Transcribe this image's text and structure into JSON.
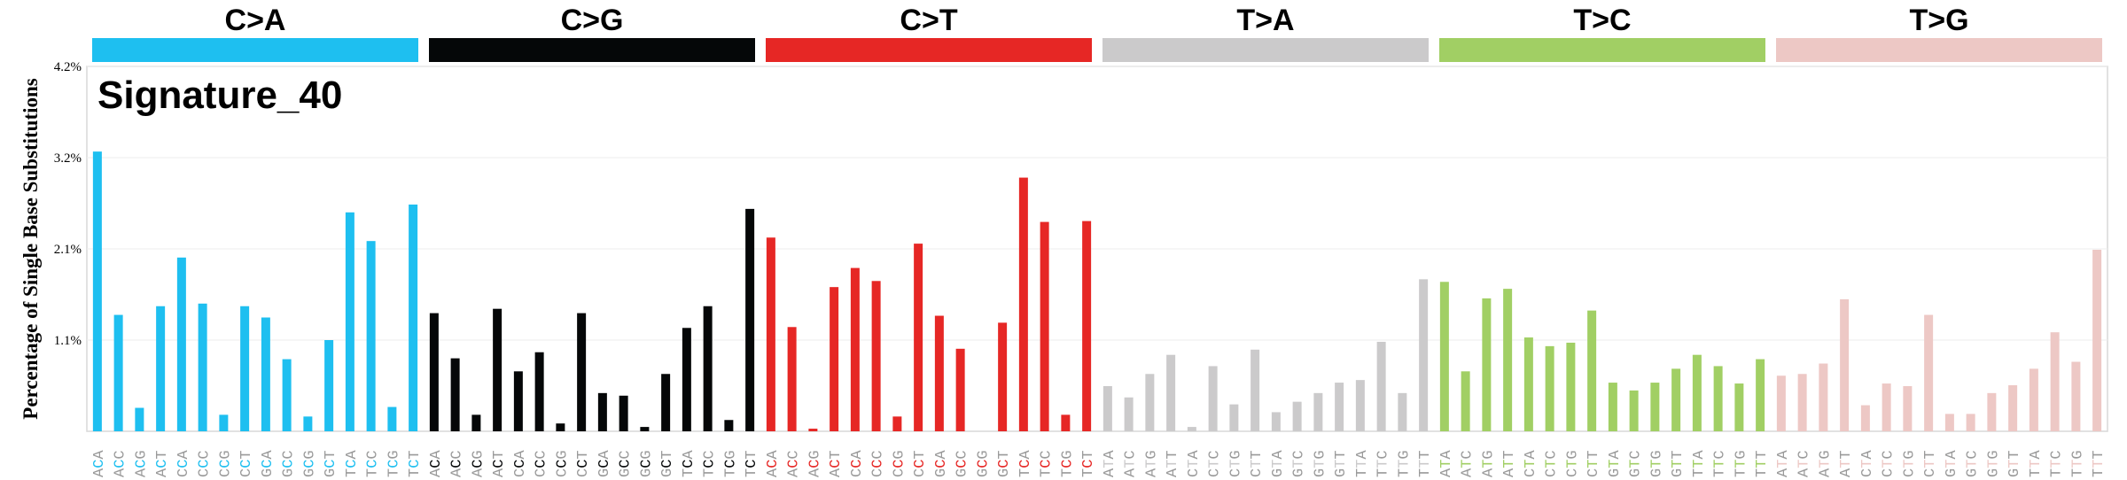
{
  "chart_data": {
    "type": "bar",
    "title": "Signature_40",
    "ylabel": "Percentage of Single Base Substitutions",
    "groups": [
      {
        "label": "C>A",
        "color": "#1ebff0"
      },
      {
        "label": "C>G",
        "color": "#050708"
      },
      {
        "label": "C>T",
        "color": "#e62725"
      },
      {
        "label": "T>A",
        "color": "#cbcacb"
      },
      {
        "label": "T>C",
        "color": "#a1cf64"
      },
      {
        "label": "T>G",
        "color": "#edc8c5"
      }
    ],
    "categories": [
      "ACA",
      "ACC",
      "ACG",
      "ACT",
      "CCA",
      "CCC",
      "CCG",
      "CCT",
      "GCA",
      "GCC",
      "GCG",
      "GCT",
      "TCA",
      "TCC",
      "TCG",
      "TCT",
      "ACA",
      "ACC",
      "ACG",
      "ACT",
      "CCA",
      "CCC",
      "CCG",
      "CCT",
      "GCA",
      "GCC",
      "GCG",
      "GCT",
      "TCA",
      "TCC",
      "TCG",
      "TCT",
      "ACA",
      "ACC",
      "ACG",
      "ACT",
      "CCA",
      "CCC",
      "CCG",
      "CCT",
      "GCA",
      "GCC",
      "GCG",
      "GCT",
      "TCA",
      "TCC",
      "TCG",
      "TCT",
      "ATA",
      "ATC",
      "ATG",
      "ATT",
      "CTA",
      "CTC",
      "CTG",
      "CTT",
      "GTA",
      "GTC",
      "GTG",
      "GTT",
      "TTA",
      "TTC",
      "TTG",
      "TTT",
      "ATA",
      "ATC",
      "ATG",
      "ATT",
      "CTA",
      "CTC",
      "CTG",
      "CTT",
      "GTA",
      "GTC",
      "GTG",
      "GTT",
      "TTA",
      "TTC",
      "TTG",
      "TTT",
      "ATA",
      "ATC",
      "ATG",
      "ATT",
      "CTA",
      "CTC",
      "CTG",
      "CTT",
      "GTA",
      "GTC",
      "GTG",
      "GTT",
      "TTA",
      "TTC",
      "TTG",
      "TTT"
    ],
    "values": [
      3.22,
      1.34,
      0.27,
      1.44,
      2.0,
      1.47,
      0.19,
      1.44,
      1.31,
      0.83,
      0.17,
      1.05,
      2.52,
      2.19,
      0.28,
      2.61,
      1.36,
      0.84,
      0.19,
      1.41,
      0.69,
      0.91,
      0.09,
      1.36,
      0.44,
      0.41,
      0.05,
      0.66,
      1.19,
      1.44,
      0.13,
      2.56,
      2.23,
      1.2,
      0.03,
      1.66,
      1.88,
      1.73,
      0.17,
      2.16,
      1.33,
      0.95,
      0,
      1.25,
      2.92,
      2.41,
      0.19,
      2.42,
      0.52,
      0.39,
      0.66,
      0.88,
      0.05,
      0.75,
      0.31,
      0.94,
      0.22,
      0.34,
      0.44,
      0.56,
      0.59,
      1.03,
      0.44,
      1.75,
      1.72,
      0.69,
      1.53,
      1.64,
      1.08,
      0.98,
      1.02,
      1.39,
      0.56,
      0.47,
      0.56,
      0.72,
      0.88,
      0.75,
      0.55,
      0.83,
      0.64,
      0.66,
      0.78,
      1.52,
      0.3,
      0.55,
      0.52,
      1.34,
      0.2,
      0.2,
      0.44,
      0.53,
      0.72,
      1.14,
      0.8,
      2.09
    ],
    "ylim": [
      0,
      4.2
    ],
    "yticks": [
      {
        "value": 1.05,
        "label": "1.1%"
      },
      {
        "value": 2.1,
        "label": "2.1%"
      },
      {
        "value": 3.15,
        "label": "3.2%"
      },
      {
        "value": 4.2,
        "label": "4.2%"
      }
    ],
    "grid": true
  }
}
